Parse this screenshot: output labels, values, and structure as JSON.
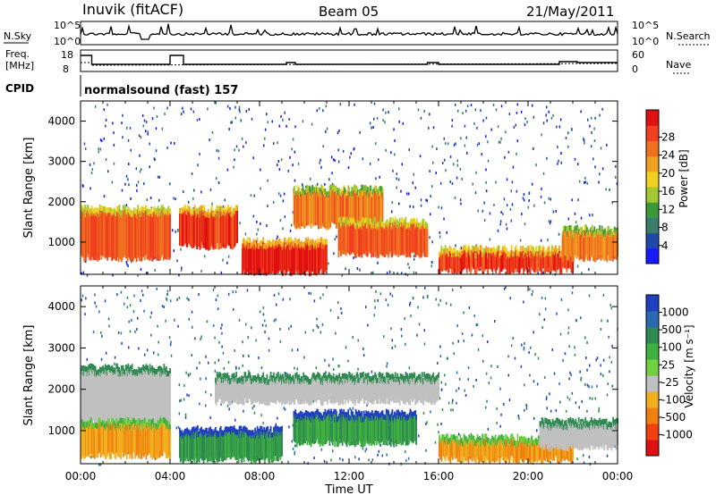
{
  "header": {
    "station": "Inuvik (fitACF)",
    "beam": "Beam 05",
    "date": "21/May/2011"
  },
  "top_panels": {
    "nsky_label": "N.Sky",
    "nsearch_label": "N.Search",
    "nsky_ticks": [
      "10^5",
      "10^0"
    ],
    "nsearch_ticks": [
      "10^5",
      "10^0"
    ],
    "freq_label_line1": "Freq.",
    "freq_label_line2": "[MHz]",
    "freq_ticks": [
      "18",
      "8"
    ],
    "nave_label": "Nave",
    "nave_ticks": [
      "60",
      "0"
    ],
    "cpid_label": "CPID",
    "cpid_text": "normalsound (fast) 157"
  },
  "chart_data": [
    {
      "type": "heatmap",
      "name": "power",
      "ylabel": "Slant Range [km]",
      "yticks": [
        "1000",
        "2000",
        "3000",
        "4000"
      ],
      "ylim": [
        200,
        4500
      ],
      "xlabel": "Time UT",
      "xticks": [
        "00:00",
        "04:00",
        "08:00",
        "12:00",
        "16:00",
        "20:00",
        "00:00"
      ],
      "colorbar_label": "Power [dB]",
      "colorbar_ticks": [
        "4",
        "8",
        "12",
        "16",
        "20",
        "24",
        "28"
      ],
      "colorbar_colors": [
        "#1a1aff",
        "#1f49a8",
        "#3a7d6a",
        "#3a9a3a",
        "#a4c834",
        "#f0d020",
        "#f0a020",
        "#f07020",
        "#f04020",
        "#e01010"
      ],
      "bands": [
        {
          "t0": 0.0,
          "t1": 4.0,
          "r0": 600,
          "r1": 1700,
          "level": 24
        },
        {
          "t0": 4.4,
          "t1": 7.0,
          "r0": 900,
          "r1": 1700,
          "level": 26
        },
        {
          "t0": 7.2,
          "t1": 11.0,
          "r0": 250,
          "r1": 900,
          "level": 28
        },
        {
          "t0": 9.5,
          "t1": 13.5,
          "r0": 1400,
          "r1": 2200,
          "level": 22
        },
        {
          "t0": 11.5,
          "t1": 15.5,
          "r0": 700,
          "r1": 1400,
          "level": 24
        },
        {
          "t0": 16.0,
          "t1": 22.0,
          "r0": 300,
          "r1": 700,
          "level": 26
        },
        {
          "t0": 21.5,
          "t1": 24.0,
          "r0": 600,
          "r1": 1200,
          "level": 22
        }
      ]
    },
    {
      "type": "heatmap",
      "name": "velocity",
      "ylabel": "Slant Range [km]",
      "yticks": [
        "1000",
        "2000",
        "3000",
        "4000"
      ],
      "ylim": [
        200,
        4500
      ],
      "xlabel": "Time UT",
      "xticks": [
        "00:00",
        "04:00",
        "08:00",
        "12:00",
        "16:00",
        "20:00",
        "00:00"
      ],
      "colorbar_label": "Velocity [m s⁻¹]",
      "colorbar_ticks": [
        "1000",
        "500",
        "100",
        "25",
        "-25",
        "-100",
        "-500",
        "-1000"
      ],
      "colorbar_colors": [
        "#2040c0",
        "#2a6ab0",
        "#2e8a50",
        "#40b040",
        "#70d040",
        "#c0c0c0",
        "#f0b020",
        "#f08010",
        "#f04010",
        "#e01010"
      ],
      "bands": [
        {
          "t0": 0.0,
          "t1": 4.0,
          "r0": 1200,
          "r1": 2400,
          "level": 0
        },
        {
          "t0": 0.0,
          "t1": 4.0,
          "r0": 400,
          "r1": 1100,
          "level": -100
        },
        {
          "t0": 4.4,
          "t1": 9.0,
          "r0": 300,
          "r1": 900,
          "level": 100
        },
        {
          "t0": 6.0,
          "t1": 16.0,
          "r0": 1700,
          "r1": 2200,
          "level": 0
        },
        {
          "t0": 9.5,
          "t1": 15.0,
          "r0": 700,
          "r1": 1300,
          "level": 100
        },
        {
          "t0": 16.0,
          "t1": 22.0,
          "r0": 300,
          "r1": 700,
          "level": -100
        },
        {
          "t0": 20.5,
          "t1": 24.0,
          "r0": 600,
          "r1": 1100,
          "level": 0
        }
      ]
    }
  ]
}
